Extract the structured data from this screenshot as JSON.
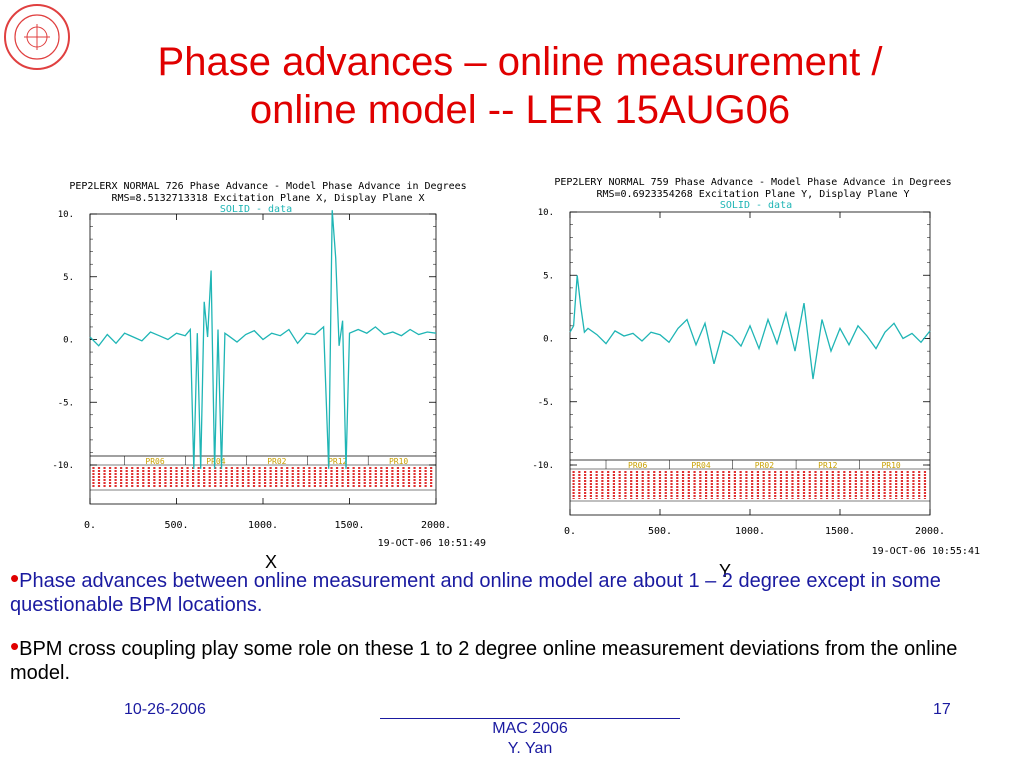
{
  "slide": {
    "title_line1": "Phase advances – online measurement /",
    "title_line2": "online model -- LER 15AUG06",
    "logo": "slac-seal-icon",
    "label_x": "X",
    "label_y": "Y",
    "bullets": [
      "Phase advances between online measurement and online model are about 1 – 2 degree except in some questionable BPM locations.",
      "BPM cross coupling play some role on these 1 to 2 degree online measurement deviations from the online model."
    ],
    "footer": {
      "date": "10-26-2006",
      "conference": "MAC 2006",
      "author": "Y. Yan",
      "page": "17"
    },
    "colors": {
      "title": "#e00000",
      "bullet_text": "#1a1aa0",
      "trace": "#1fb5b5",
      "region_label": "#c8a000",
      "bpm_names": "#e03030"
    }
  },
  "chart_data": [
    {
      "type": "line",
      "title_line1": "PEP2LERX NORMAL  726 Phase Advance - Model Phase Advance in Degrees",
      "title_line2": "RMS=8.5132713318 Excitation Plane X, Display Plane X",
      "legend": "SOLID  - data",
      "timestamp": "19-OCT-06 10:51:49",
      "xlim": [
        0,
        2000
      ],
      "ylim": [
        -10,
        10
      ],
      "x_ticks": [
        "0.",
        "500.",
        "1000.",
        "1500.",
        "2000."
      ],
      "y_ticks": [
        "10.",
        "5.",
        "0.",
        "-5.",
        "-10."
      ],
      "regions": [
        "PR06",
        "PR04",
        "PR02",
        "PR12",
        "PR10"
      ],
      "series": [
        {
          "x": [
            0,
            50,
            100,
            150,
            200,
            250,
            300,
            350,
            400,
            450,
            500,
            550,
            580,
            600,
            620,
            640,
            660,
            680,
            700,
            720,
            740,
            760,
            780,
            800,
            850,
            900,
            950,
            1000,
            1050,
            1100,
            1150,
            1200,
            1250,
            1300,
            1350,
            1380,
            1400,
            1420,
            1440,
            1460,
            1480,
            1500,
            1550,
            1600,
            1650,
            1700,
            1750,
            1800,
            1850,
            1900,
            1950,
            2000
          ],
          "y": [
            0.2,
            -0.5,
            0.4,
            -0.3,
            0.5,
            0.2,
            -0.1,
            0.6,
            0.3,
            0.0,
            0.5,
            0.3,
            0.8,
            -10.3,
            0.5,
            -10.3,
            3.0,
            0.2,
            5.5,
            -10.3,
            0.8,
            -10.3,
            0.5,
            0.3,
            -0.2,
            0.4,
            0.7,
            0.0,
            0.5,
            0.3,
            0.8,
            -0.3,
            0.5,
            0.4,
            1.0,
            -10.3,
            10.3,
            6.5,
            -0.5,
            1.5,
            -10.3,
            0.5,
            0.8,
            0.5,
            1.0,
            0.4,
            0.6,
            0.3,
            0.8,
            0.4,
            0.6,
            0.5
          ]
        }
      ]
    },
    {
      "type": "line",
      "title_line1": "PEP2LERY NORMAL  759 Phase Advance - Model Phase Advance in Degrees",
      "title_line2": "RMS=0.6923354268 Excitation Plane Y, Display Plane Y",
      "legend": "SOLID  - data",
      "timestamp": "19-OCT-06 10:55:41",
      "xlim": [
        0,
        2000
      ],
      "ylim": [
        -10,
        10
      ],
      "x_ticks": [
        "0.",
        "500.",
        "1000.",
        "1500.",
        "2000."
      ],
      "y_ticks": [
        "10.",
        "5.",
        "0.",
        "-5.",
        "-10."
      ],
      "regions": [
        "PR06",
        "PR04",
        "PR02",
        "PR12",
        "PR10"
      ],
      "series": [
        {
          "x": [
            0,
            20,
            40,
            60,
            80,
            100,
            150,
            200,
            250,
            300,
            350,
            400,
            450,
            500,
            550,
            600,
            650,
            700,
            750,
            800,
            850,
            900,
            950,
            1000,
            1050,
            1100,
            1150,
            1200,
            1250,
            1300,
            1350,
            1400,
            1450,
            1500,
            1550,
            1600,
            1650,
            1700,
            1750,
            1800,
            1850,
            1900,
            1950,
            2000
          ],
          "y": [
            0.5,
            1.0,
            5.0,
            2.5,
            0.5,
            0.8,
            0.3,
            -0.4,
            0.6,
            0.2,
            0.4,
            -0.2,
            0.5,
            0.3,
            -0.3,
            0.8,
            1.5,
            -0.5,
            1.2,
            -2.0,
            0.6,
            0.2,
            -0.6,
            1.0,
            -0.8,
            1.5,
            -0.4,
            2.0,
            -1.0,
            2.8,
            -3.2,
            1.5,
            -1.0,
            0.8,
            -0.5,
            1.0,
            0.2,
            -0.8,
            0.5,
            1.2,
            0.0,
            0.4,
            -0.3,
            0.6
          ]
        }
      ]
    }
  ]
}
